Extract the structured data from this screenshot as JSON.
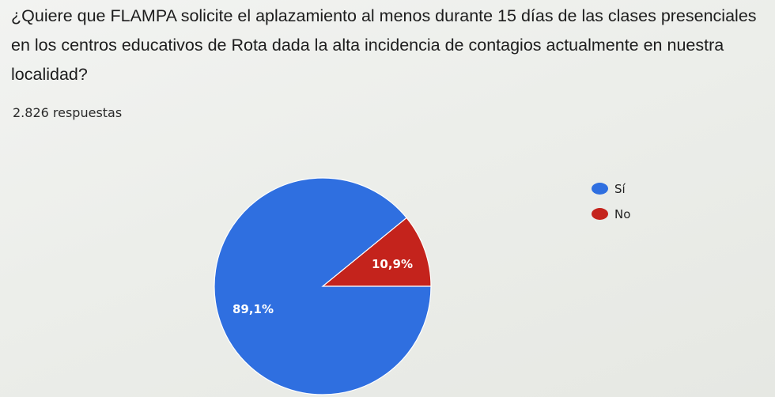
{
  "question": "¿Quiere que FLAMPA solicite el aplazamiento al menos durante 15 días de las clases presenciales en los centros educativos de Rota dada la alta incidencia de contagios actualmente en nuestra localidad?",
  "responses": "2.826 respuestas",
  "colors": {
    "si": "#2f6fe0",
    "no": "#c4231c"
  },
  "chart_data": {
    "type": "pie",
    "title": "",
    "slices": [
      {
        "label": "Sí",
        "value": 89.1,
        "display": "89,1%",
        "color": "#2f6fe0"
      },
      {
        "label": "No",
        "value": 10.9,
        "display": "10,9%",
        "color": "#c4231c"
      }
    ],
    "legend_position": "right"
  }
}
